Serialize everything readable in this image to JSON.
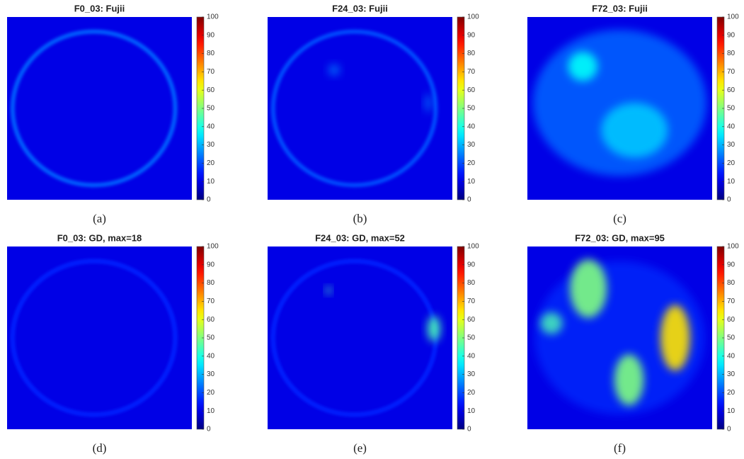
{
  "chart_data": [
    {
      "type": "heatmap",
      "title": "F0_03: Fujii",
      "caption": "(a)",
      "colormap": "jet",
      "clim": [
        0,
        100
      ],
      "cticks": [
        0,
        10,
        20,
        30,
        40,
        50,
        60,
        70,
        80,
        90,
        100
      ]
    },
    {
      "type": "heatmap",
      "title": "F24_03: Fujii",
      "caption": "(b)",
      "colormap": "jet",
      "clim": [
        0,
        100
      ],
      "cticks": [
        0,
        10,
        20,
        30,
        40,
        50,
        60,
        70,
        80,
        90,
        100
      ]
    },
    {
      "type": "heatmap",
      "title": "F72_03: Fujii",
      "caption": "(c)",
      "colormap": "jet",
      "clim": [
        0,
        100
      ],
      "cticks": [
        0,
        10,
        20,
        30,
        40,
        50,
        60,
        70,
        80,
        90,
        100
      ]
    },
    {
      "type": "heatmap",
      "title": "F0_03: GD, max=18",
      "caption": "(d)",
      "colormap": "jet",
      "clim": [
        0,
        100
      ],
      "cticks": [
        0,
        10,
        20,
        30,
        40,
        50,
        60,
        70,
        80,
        90,
        100
      ]
    },
    {
      "type": "heatmap",
      "title": "F24_03: GD, max=52",
      "caption": "(e)",
      "colormap": "jet",
      "clim": [
        0,
        100
      ],
      "cticks": [
        0,
        10,
        20,
        30,
        40,
        50,
        60,
        70,
        80,
        90,
        100
      ]
    },
    {
      "type": "heatmap",
      "title": "F72_03: GD, max=95",
      "caption": "(f)",
      "colormap": "jet",
      "clim": [
        0,
        100
      ],
      "cticks": [
        0,
        10,
        20,
        30,
        40,
        50,
        60,
        70,
        80,
        90,
        100
      ]
    }
  ]
}
